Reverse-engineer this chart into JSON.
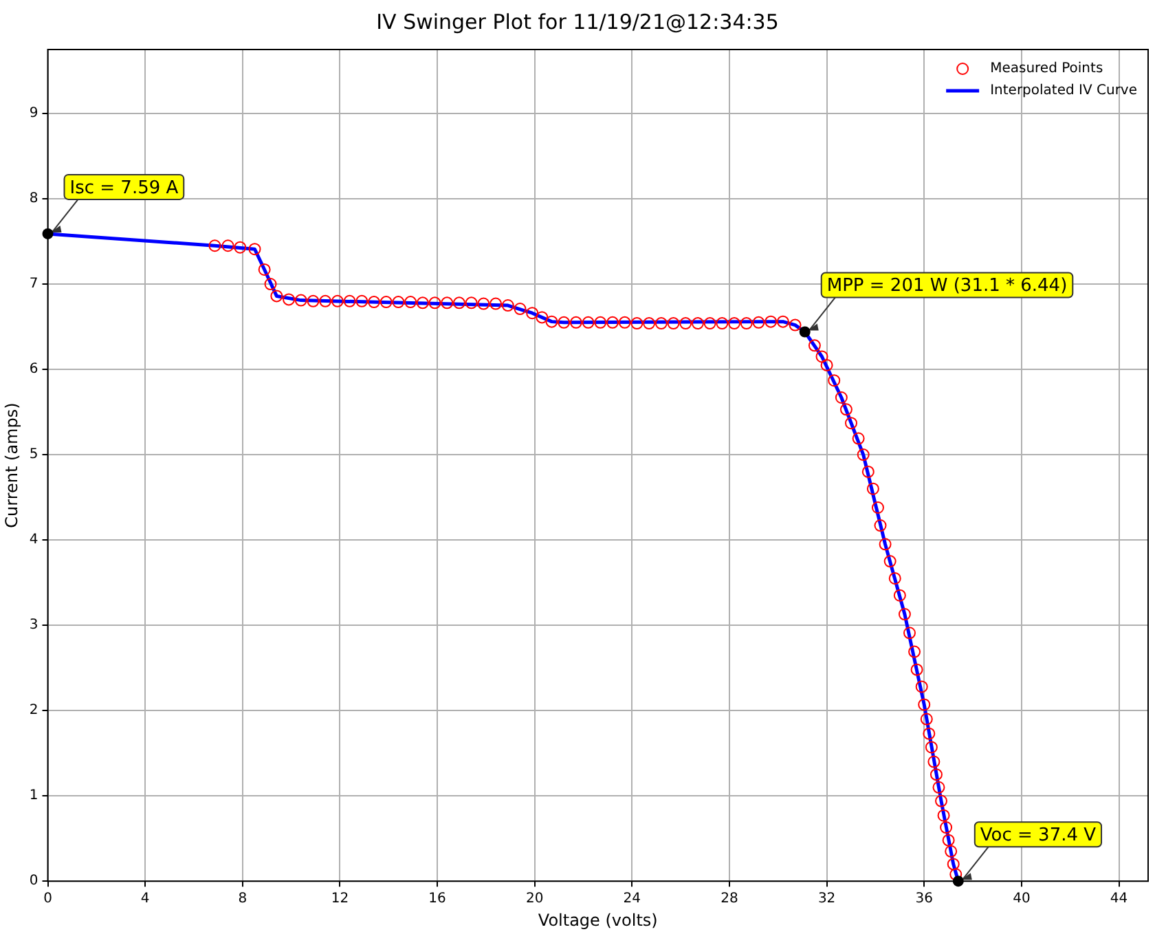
{
  "chart_data": {
    "type": "line",
    "title": "IV Swinger Plot for 11/19/21@12:34:35",
    "xlabel": "Voltage (volts)",
    "ylabel": "Current (amps)",
    "xlim": [
      0,
      45.2
    ],
    "xticks": [
      0,
      4,
      8,
      12,
      16,
      20,
      24,
      28,
      32,
      36,
      40,
      44
    ],
    "ylim": [
      0,
      9.75
    ],
    "yticks": [
      0,
      1,
      2,
      3,
      4,
      5,
      6,
      7,
      8,
      9
    ],
    "grid": true,
    "legend": "top right",
    "series": [
      {
        "name": "Measured Points",
        "type": "scatter",
        "marker": "circle",
        "color": "#ff0000",
        "x": [
          6.86,
          7.4,
          7.9,
          8.5,
          8.9,
          9.15,
          9.4,
          9.9,
          10.4,
          10.9,
          11.4,
          11.9,
          12.4,
          12.9,
          13.4,
          13.9,
          14.4,
          14.9,
          15.4,
          15.9,
          16.4,
          16.9,
          17.4,
          17.9,
          18.4,
          18.9,
          19.4,
          19.9,
          20.3,
          20.7,
          21.2,
          21.7,
          22.2,
          22.7,
          23.2,
          23.7,
          24.2,
          24.7,
          25.2,
          25.7,
          26.2,
          26.7,
          27.2,
          27.7,
          28.2,
          28.7,
          29.2,
          29.7,
          30.2,
          30.7,
          31.5,
          31.8,
          32.0,
          32.3,
          32.6,
          32.8,
          33.0,
          33.3,
          33.5,
          33.7,
          33.9,
          34.1,
          34.2,
          34.4,
          34.6,
          34.8,
          35.0,
          35.2,
          35.4,
          35.6,
          35.7,
          35.9,
          36.0,
          36.1,
          36.2,
          36.3,
          36.4,
          36.5,
          36.6,
          36.7,
          36.8,
          36.9,
          37.0,
          37.1,
          37.2,
          37.3
        ],
        "values": [
          7.45,
          7.45,
          7.43,
          7.41,
          7.17,
          7.0,
          6.86,
          6.82,
          6.81,
          6.8,
          6.8,
          6.8,
          6.8,
          6.8,
          6.79,
          6.79,
          6.79,
          6.79,
          6.78,
          6.78,
          6.78,
          6.78,
          6.78,
          6.77,
          6.77,
          6.75,
          6.71,
          6.66,
          6.61,
          6.56,
          6.55,
          6.55,
          6.55,
          6.55,
          6.55,
          6.55,
          6.54,
          6.54,
          6.54,
          6.54,
          6.54,
          6.54,
          6.54,
          6.54,
          6.54,
          6.54,
          6.55,
          6.56,
          6.56,
          6.52,
          6.28,
          6.15,
          6.05,
          5.87,
          5.67,
          5.53,
          5.37,
          5.19,
          5.0,
          4.8,
          4.6,
          4.38,
          4.17,
          3.95,
          3.75,
          3.55,
          3.35,
          3.13,
          2.91,
          2.69,
          2.48,
          2.28,
          2.07,
          1.9,
          1.73,
          1.57,
          1.4,
          1.25,
          1.1,
          0.94,
          0.77,
          0.63,
          0.48,
          0.35,
          0.2,
          0.08
        ]
      },
      {
        "name": "Interpolated IV Curve",
        "marker": "none",
        "color": "#0000ff",
        "x": [
          0,
          6.86,
          8.5,
          8.9,
          9.4,
          10.4,
          18.9,
          19.9,
          20.7,
          21.2,
          30.2,
          30.7,
          31.1,
          31.8,
          32.6,
          33.5,
          34.4,
          35.2,
          36.0,
          36.7,
          37.2,
          37.4
        ],
        "values": [
          7.59,
          7.45,
          7.41,
          7.17,
          6.86,
          6.81,
          6.75,
          6.66,
          6.56,
          6.55,
          6.56,
          6.52,
          6.44,
          6.15,
          5.67,
          5.0,
          3.95,
          3.13,
          2.07,
          0.94,
          0.2,
          0
        ]
      }
    ],
    "annotations": [
      {
        "text": "Isc = 7.59 A",
        "x": 0,
        "y": 7.59
      },
      {
        "text": "MPP = 201 W (31.1 * 6.44)",
        "x": 31.1,
        "y": 6.44
      },
      {
        "text": "Voc = 37.4 V",
        "x": 37.4,
        "y": 0
      }
    ]
  }
}
